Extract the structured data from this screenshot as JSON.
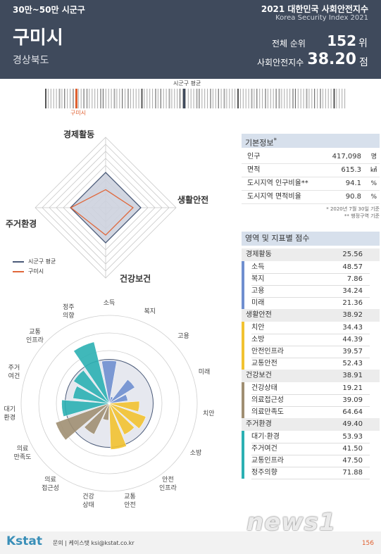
{
  "header": {
    "category": "30만~50만 시군구",
    "index_title": "2021 대한민국 사회안전지수",
    "index_subtitle": "Korea Security Index 2021",
    "city": "구미시",
    "province": "경상북도",
    "rank_label": "전체 순위",
    "rank_value": "152",
    "rank_unit": "위",
    "score_label": "사회안전지수",
    "score_value": "38.20",
    "score_unit": "점"
  },
  "strip": {
    "avg_label": "시군구 평균",
    "city_label": "구미시"
  },
  "radar": {
    "axes": [
      "경제활동",
      "생활안전",
      "건강보건",
      "주거환경"
    ],
    "avg_values": [
      50,
      50,
      50,
      50
    ],
    "city_values": [
      25.56,
      38.92,
      38.91,
      49.4
    ],
    "legend": {
      "avg": "시군구 평균",
      "city": "구미시"
    },
    "colors": {
      "avg": "#4a5a78",
      "city": "#e0673a",
      "fill": "#cdd2de"
    }
  },
  "polar": {
    "labels": [
      "소득",
      "복지",
      "고용",
      "미래",
      "치안",
      "소방",
      "안전\n인프라",
      "교통\n안전",
      "건강\n상태",
      "의료\n접근성",
      "의료\n만족도",
      "대기\n환경",
      "주거\n여건",
      "교통\n인프라",
      "정주\n의향"
    ],
    "values": [
      48.57,
      7.86,
      34.24,
      21.36,
      34.43,
      44.39,
      39.57,
      52.43,
      19.21,
      39.09,
      64.64,
      53.93,
      41.5,
      47.5,
      71.88
    ],
    "domain_colors": [
      "#6f8fcf",
      "#6f8fcf",
      "#6f8fcf",
      "#6f8fcf",
      "#f2c230",
      "#f2c230",
      "#f2c230",
      "#f2c230",
      "#a08f72",
      "#a08f72",
      "#a08f72",
      "#2bb0b3",
      "#2bb0b3",
      "#2bb0b3",
      "#2bb0b3"
    ]
  },
  "basic": {
    "title": "기본정보",
    "title_mark": "*",
    "rows": [
      {
        "k": "인구",
        "v": "417,098",
        "u": "명"
      },
      {
        "k": "면적",
        "v": "615.3",
        "u": "㎢"
      },
      {
        "k": "도시지역 인구비율**",
        "v": "94.1",
        "u": "%"
      },
      {
        "k": "도시지역 면적비율",
        "v": "90.8",
        "u": "%"
      }
    ],
    "notes": [
      "* 2020년 7월 30일 기준",
      "** 행정구역 기준"
    ]
  },
  "scores": {
    "title": "영역 및 지표별 점수",
    "domains": [
      {
        "name": "경제활동",
        "score": "25.56",
        "color": "#6f8fcf",
        "items": [
          {
            "k": "소득",
            "v": "48.57"
          },
          {
            "k": "복지",
            "v": "7.86"
          },
          {
            "k": "고용",
            "v": "34.24"
          },
          {
            "k": "미래",
            "v": "21.36"
          }
        ]
      },
      {
        "name": "생활안전",
        "score": "38.92",
        "color": "#f2c230",
        "items": [
          {
            "k": "치안",
            "v": "34.43"
          },
          {
            "k": "소방",
            "v": "44.39"
          },
          {
            "k": "안전인프라",
            "v": "39.57"
          },
          {
            "k": "교통안전",
            "v": "52.43"
          }
        ]
      },
      {
        "name": "건강보건",
        "score": "38.91",
        "color": "#a08f72",
        "items": [
          {
            "k": "건강상태",
            "v": "19.21"
          },
          {
            "k": "의료접근성",
            "v": "39.09"
          },
          {
            "k": "의료만족도",
            "v": "64.64"
          }
        ]
      },
      {
        "name": "주거환경",
        "score": "49.40",
        "color": "#2bb0b3",
        "items": [
          {
            "k": "대기·환경",
            "v": "53.93"
          },
          {
            "k": "주거여건",
            "v": "41.50"
          },
          {
            "k": "교통인프라",
            "v": "47.50"
          },
          {
            "k": "정주의향",
            "v": "71.88"
          }
        ]
      }
    ]
  },
  "footer": {
    "logo": "Kstat",
    "contact": "문의 | 케이스탯 ksi@kstat.co.kr",
    "page": "156"
  },
  "watermark": "news1"
}
